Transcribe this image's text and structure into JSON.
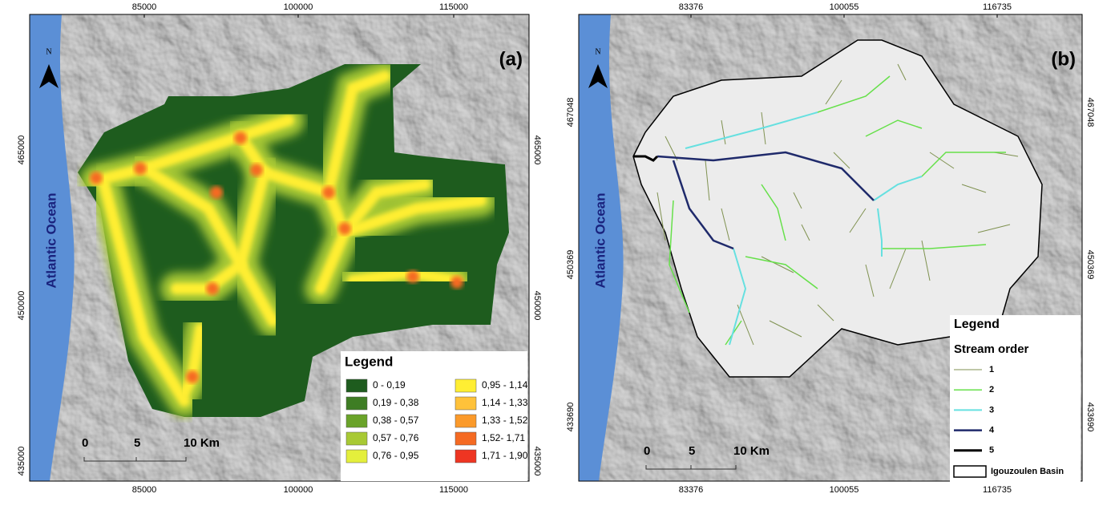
{
  "panels": [
    {
      "label": "(a)",
      "north": "N",
      "ocean": "Atlantic Ocean",
      "top_ticks": [
        "85000",
        "100000",
        "115000"
      ],
      "side_ticks": [
        "465000",
        "450000",
        "435000"
      ],
      "scale": [
        "0",
        "5",
        "10 Km"
      ],
      "legend": {
        "title": "Legend",
        "items": [
          {
            "label": "0 - 0,19",
            "color": "#1e5c1e"
          },
          {
            "label": "0,19 - 0,38",
            "color": "#3e7d24"
          },
          {
            "label": "0,38 - 0,57",
            "color": "#6aa329"
          },
          {
            "label": "0,57 - 0,76",
            "color": "#a8c934"
          },
          {
            "label": "0,76 - 0,95",
            "color": "#e4ef3c"
          },
          {
            "label": "0,95 - 1,14",
            "color": "#ffee33"
          },
          {
            "label": "1,14 - 1,33",
            "color": "#ffc23a"
          },
          {
            "label": "1,33 - 1,52",
            "color": "#fb9a2a"
          },
          {
            "label": "1,52- 1,71",
            "color": "#f56a22"
          },
          {
            "label": "1,71 - 1,90",
            "color": "#ee3522"
          }
        ]
      }
    },
    {
      "label": "(b)",
      "north": "N",
      "ocean": "Atlantic Ocean",
      "top_ticks": [
        "83376",
        "100055",
        "116735"
      ],
      "side_ticks": [
        "467048",
        "450369",
        "433690"
      ],
      "scale": [
        "0",
        "5",
        "10 Km"
      ],
      "legend": {
        "title": "Legend",
        "subtitle": "Stream order",
        "items": [
          {
            "label": "1",
            "color": "#7f9150"
          },
          {
            "label": "2",
            "color": "#66e04a"
          },
          {
            "label": "3",
            "color": "#66e0e0"
          },
          {
            "label": "4",
            "color": "#1f2a6b"
          },
          {
            "label": "5",
            "color": "#000000"
          }
        ],
        "basin": "Igouzoulen Basin"
      }
    }
  ]
}
